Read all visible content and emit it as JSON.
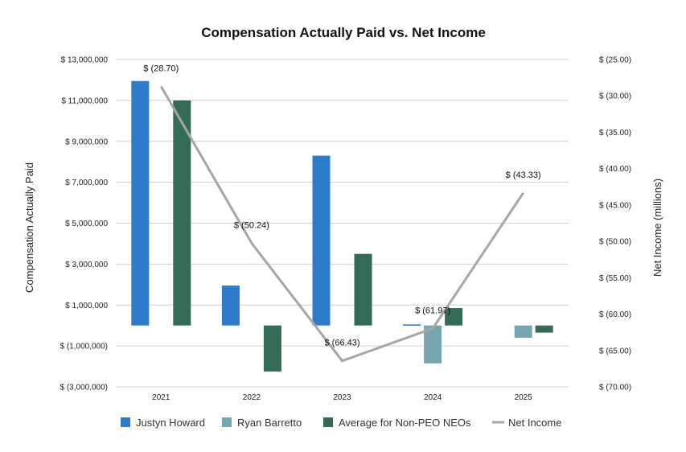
{
  "chart_data": {
    "type": "bar",
    "title": "Compensation Actually Paid vs. Net Income",
    "ylabel_left": "Compensation Actually Paid",
    "ylabel_right": "Net Income (millions)",
    "xlabel": "",
    "categories": [
      "2021",
      "2022",
      "2023",
      "2024",
      "2025"
    ],
    "ylim_left": [
      -3000000,
      13000000
    ],
    "ylim_right": [
      -70,
      -25
    ],
    "left_ticks": [
      -3000000,
      -1000000,
      1000000,
      3000000,
      5000000,
      7000000,
      9000000,
      11000000,
      13000000
    ],
    "left_tick_labels": [
      "$ (3,000,000)",
      "$ (1,000,000)",
      "$ 1,000,000",
      "$ 3,000,000",
      "$ 5,000,000",
      "$ 7,000,000",
      "$ 9,000,000",
      "$ 11,000,000",
      "$ 13,000,000"
    ],
    "right_ticks": [
      -70,
      -65,
      -60,
      -55,
      -50,
      -45,
      -40,
      -35,
      -30,
      -25
    ],
    "right_tick_labels": [
      "$ (70.00)",
      "$ (65.00)",
      "$ (60.00)",
      "$ (55.00)",
      "$ (50.00)",
      "$ (45.00)",
      "$ (40.00)",
      "$ (35.00)",
      "$ (30.00)",
      "$ (25.00)"
    ],
    "grid": true,
    "legend_position": "bottom",
    "series": [
      {
        "name": "Justyn Howard",
        "kind": "bar",
        "color": "#2e7bcb",
        "values": [
          11950000,
          1950000,
          8300000,
          50000,
          null
        ]
      },
      {
        "name": "Ryan Barretto",
        "kind": "bar",
        "color": "#76a5af",
        "values": [
          null,
          null,
          null,
          -1850000,
          -600000
        ]
      },
      {
        "name": "Average for Non-PEO NEOs",
        "kind": "bar",
        "color": "#336b54",
        "values": [
          11000000,
          -2250000,
          3500000,
          850000,
          -350000
        ]
      },
      {
        "name": "Net Income",
        "kind": "line",
        "axis": "right",
        "color": "#a6a6a6",
        "values": [
          -28.7,
          -50.24,
          -66.43,
          -61.97,
          -43.33
        ],
        "labels": [
          "$ (28.70)",
          "$ (50.24)",
          "$ (66.43)",
          "$ (61.97)",
          "$ (43.33)"
        ]
      }
    ]
  }
}
